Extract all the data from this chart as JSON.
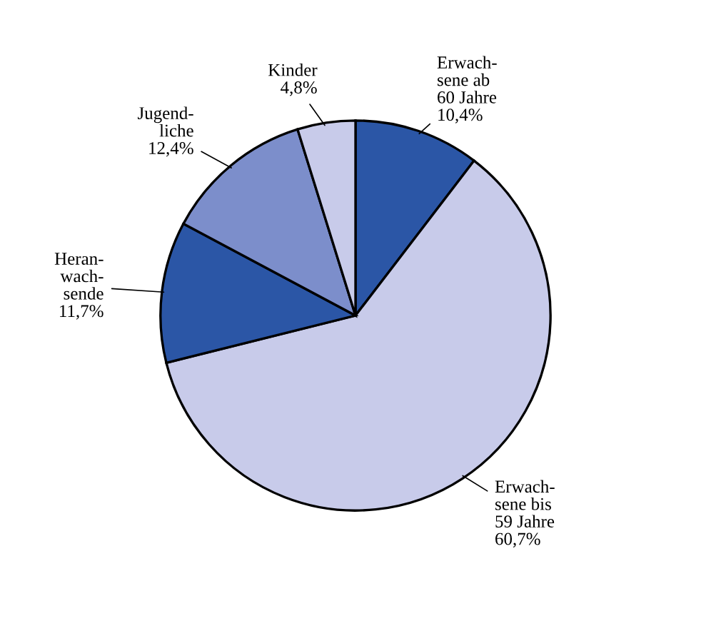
{
  "chart_data": {
    "type": "pie",
    "categories": [
      "Erwach-\nsene ab\n60 Jahre",
      "Erwach-\nsene bis\n59 Jahre",
      "Heran-\nwach-\nsende",
      "Jugend-\nliche",
      "Kinder"
    ],
    "values": [
      10.4,
      60.7,
      11.7,
      12.4,
      4.8
    ],
    "value_labels": [
      "10,4%",
      "60,7%",
      "11,7%",
      "12,4%",
      "4,8%"
    ],
    "colors": [
      "#2b56a6",
      "#c8cbea",
      "#2b56a6",
      "#7c8ecb",
      "#c8cbea"
    ]
  }
}
